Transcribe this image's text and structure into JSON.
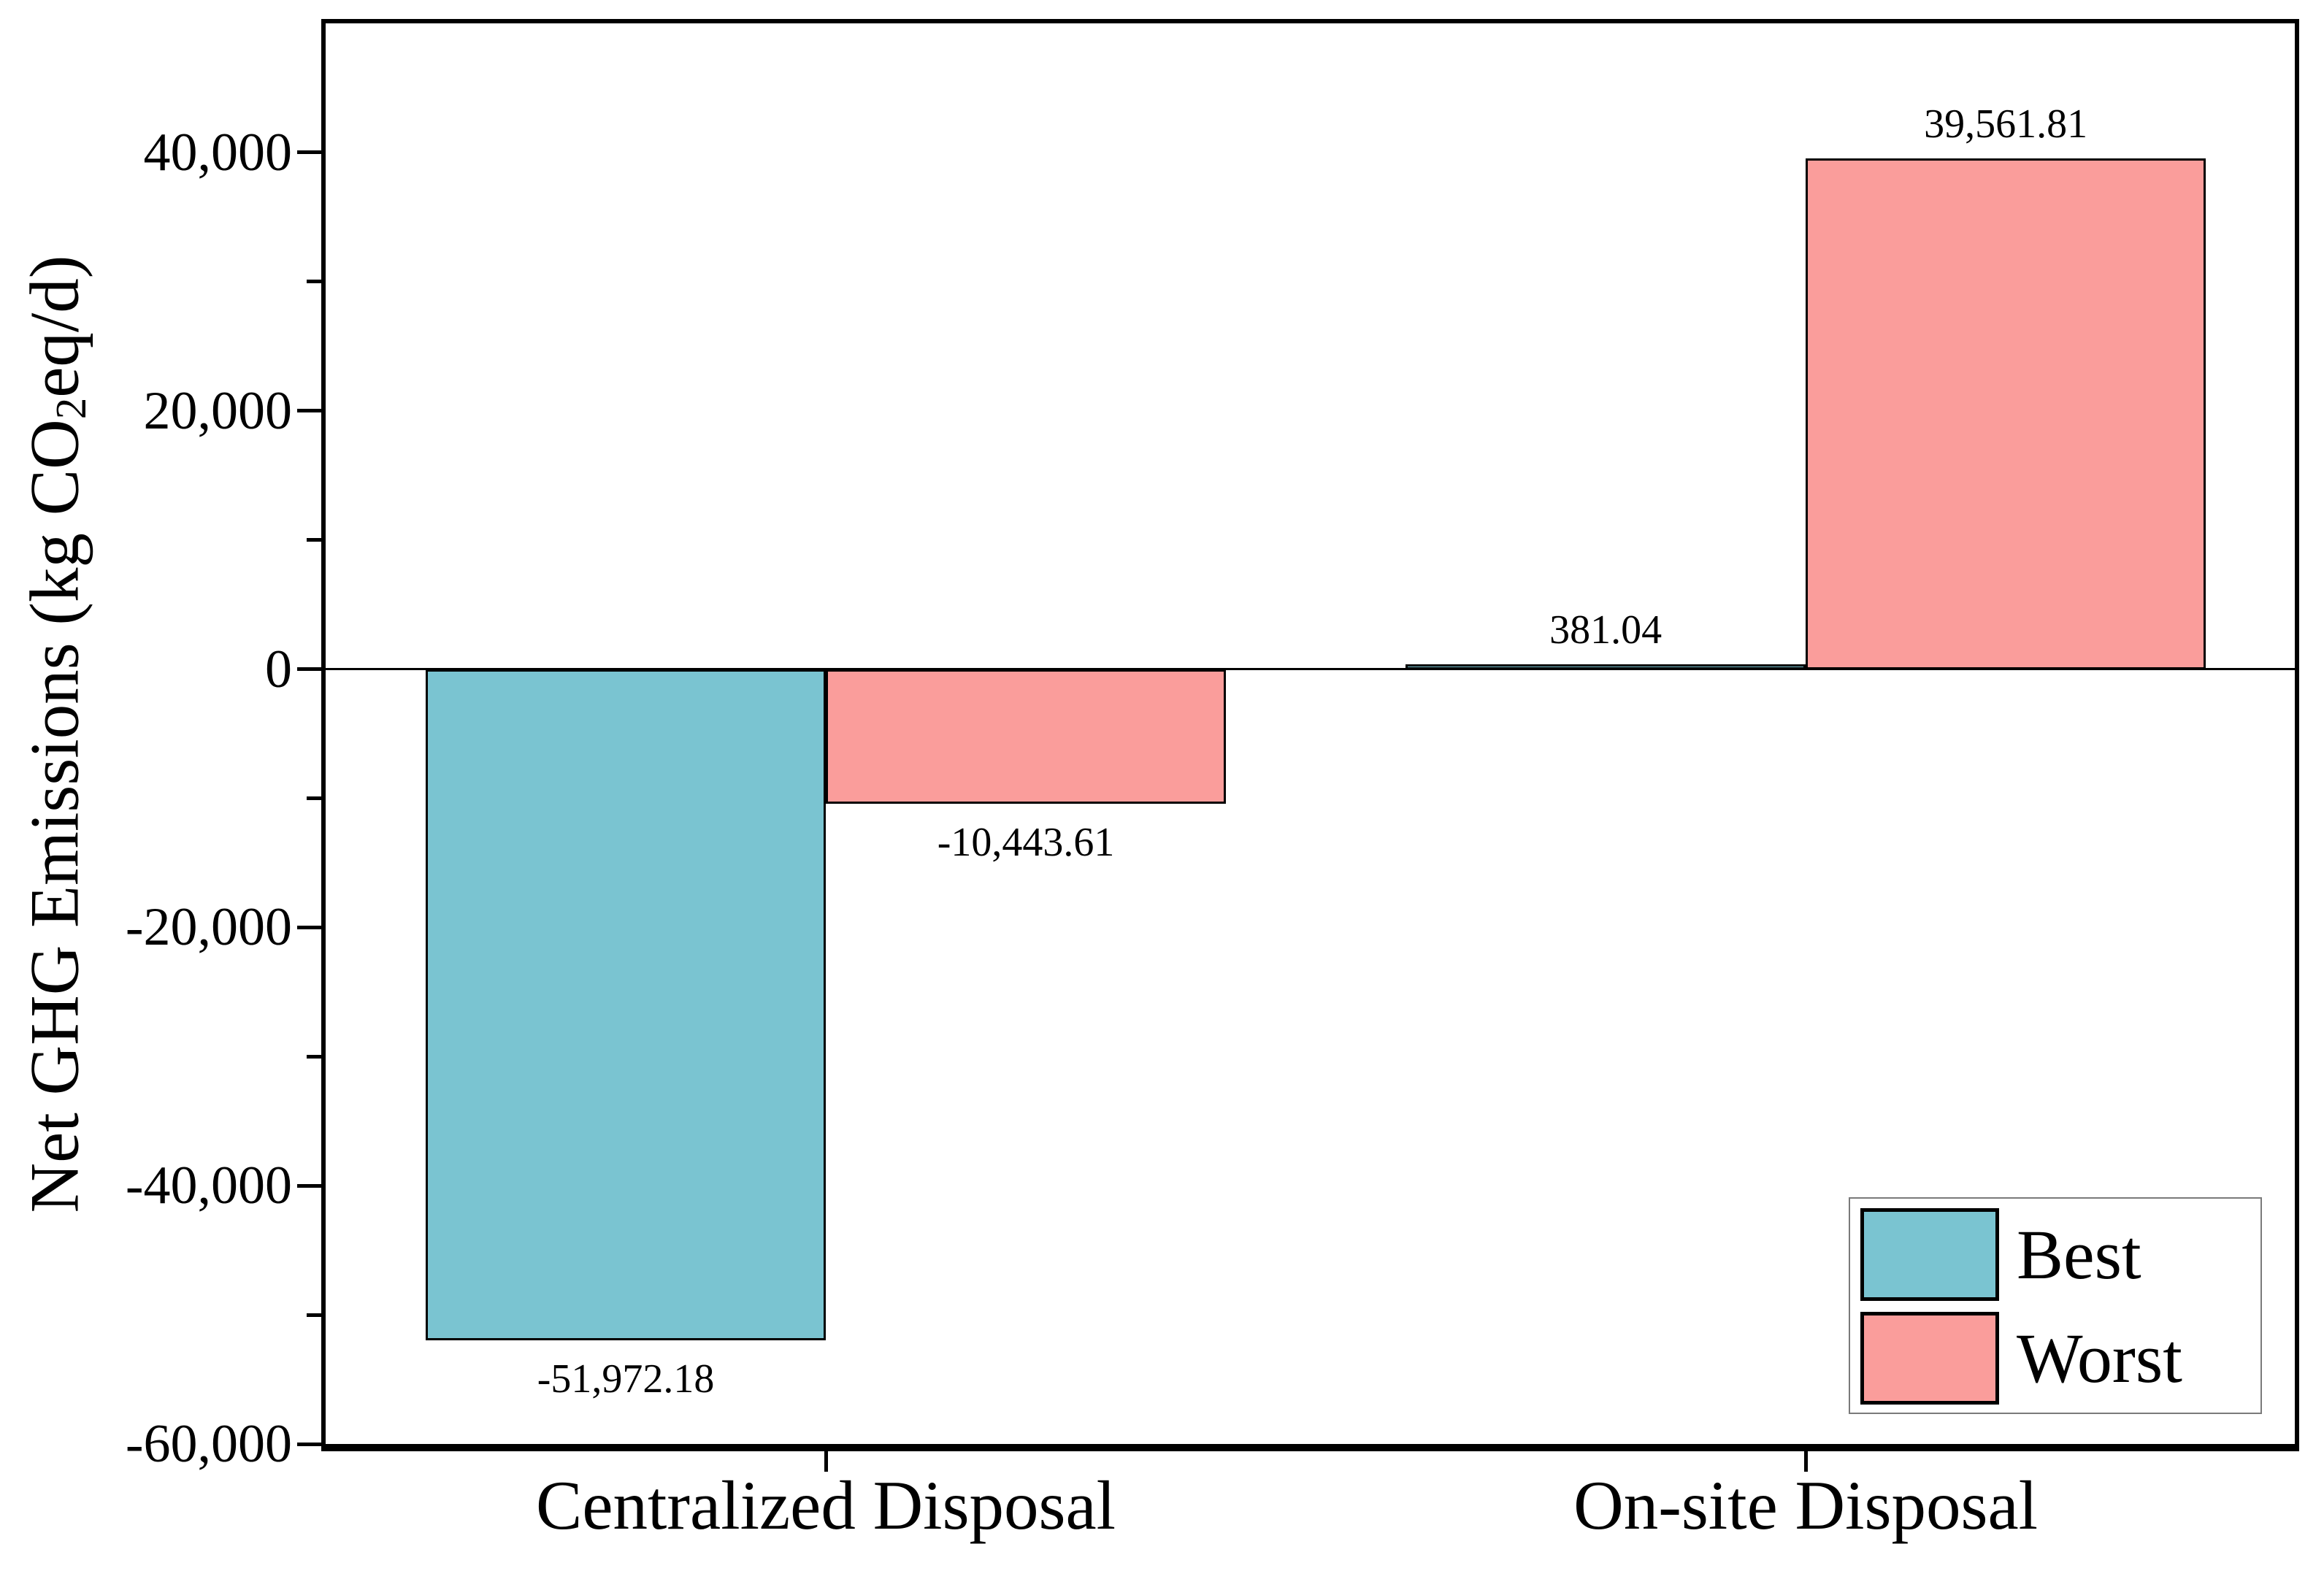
{
  "chart_data": {
    "type": "bar",
    "ylabel": {
      "prefix": "Net GHG Emissions (kg CO",
      "sub": "2",
      "suffix": "eq/d)"
    },
    "categories": [
      "Centralized Disposal",
      "On-site Disposal"
    ],
    "series": [
      {
        "name": "Best",
        "color": "#7AC4D1",
        "values": [
          -51972.18,
          381.04
        ],
        "value_labels": [
          "-51,972.18",
          "381.04"
        ]
      },
      {
        "name": "Worst",
        "color": "#FA9D9B",
        "values": [
          -10443.61,
          39561.81
        ],
        "value_labels": [
          "-10,443.61",
          "39,561.81"
        ]
      }
    ],
    "ylim": [
      -60000,
      50000
    ],
    "yticks": [
      {
        "value": 40000,
        "label": "40,000"
      },
      {
        "value": 20000,
        "label": "20,000"
      },
      {
        "value": 0,
        "label": "0"
      },
      {
        "value": -20000,
        "label": "-20,000"
      },
      {
        "value": -40000,
        "label": "-40,000"
      },
      {
        "value": -60000,
        "label": "-60,000"
      }
    ],
    "yticks_minor": [
      30000,
      10000,
      -10000,
      -30000,
      -50000
    ],
    "grid": false,
    "baseline": 0,
    "legend": {
      "position": "bottom-right"
    },
    "colors": {
      "axis": "#000000",
      "legend_border": "#7a7a7a"
    }
  }
}
